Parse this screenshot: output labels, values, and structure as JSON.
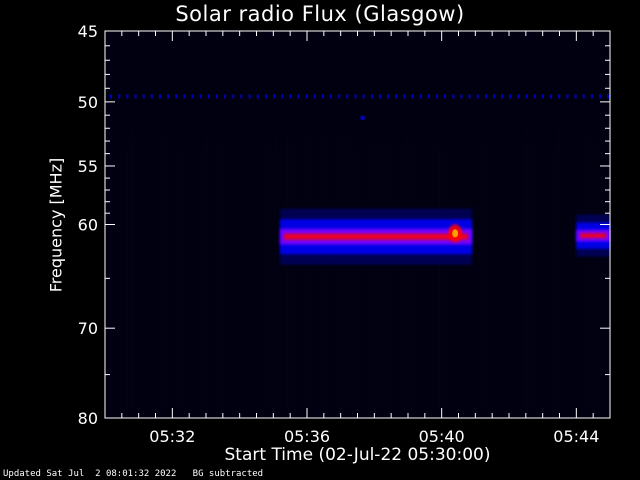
{
  "chart_data": {
    "type": "heatmap",
    "title": "Solar radio Flux (Glasgow)",
    "xlabel": "Start Time (02-Jul-22 05:30:00)",
    "ylabel": "Frequency [MHz]",
    "x_unit": "minutes after 05:30:00",
    "xlim": [
      0,
      15
    ],
    "x_ticks": [
      {
        "value": 2,
        "label": "05:32"
      },
      {
        "value": 6,
        "label": "05:36"
      },
      {
        "value": 10,
        "label": "05:40"
      },
      {
        "value": 14,
        "label": "05:44"
      }
    ],
    "y_scale": "log",
    "ylim": [
      45,
      80
    ],
    "y_major_ticks": [
      45,
      50,
      55,
      60,
      70,
      80
    ],
    "y_minor_ticks": [
      46,
      47,
      48,
      49,
      51,
      52,
      53,
      54,
      56,
      57,
      58,
      59,
      65,
      75
    ],
    "colorscale": [
      "#000010",
      "#00008b",
      "#0000ff",
      "#8000ff",
      "#ff0000",
      "#ffa000",
      "#ffffff"
    ],
    "features": [
      {
        "kind": "continuous_band",
        "freq_center_mhz": 61.1,
        "freq_halfwidth_mhz": 0.8,
        "x_start": 5.2,
        "x_end": 10.9,
        "intensity": "strong",
        "peak": "red"
      },
      {
        "kind": "continuous_band",
        "freq_center_mhz": 61.0,
        "freq_halfwidth_mhz": 0.6,
        "x_start": 14.0,
        "x_end": 15.0,
        "intensity": "strong",
        "peak": "red"
      },
      {
        "kind": "dotted_line",
        "freq_mhz": 49.6,
        "x_start": 0,
        "x_end": 15.0,
        "intensity": "weak"
      },
      {
        "kind": "hot_spot",
        "freq_mhz": 60.8,
        "x": 10.4,
        "intensity": "max"
      },
      {
        "kind": "dot",
        "freq_mhz": 51.2,
        "x": 7.65,
        "intensity": "weak"
      }
    ]
  },
  "footer": {
    "updated": "Updated Sat Jul  2 08:01:32 2022",
    "note": "BG subtracted"
  }
}
